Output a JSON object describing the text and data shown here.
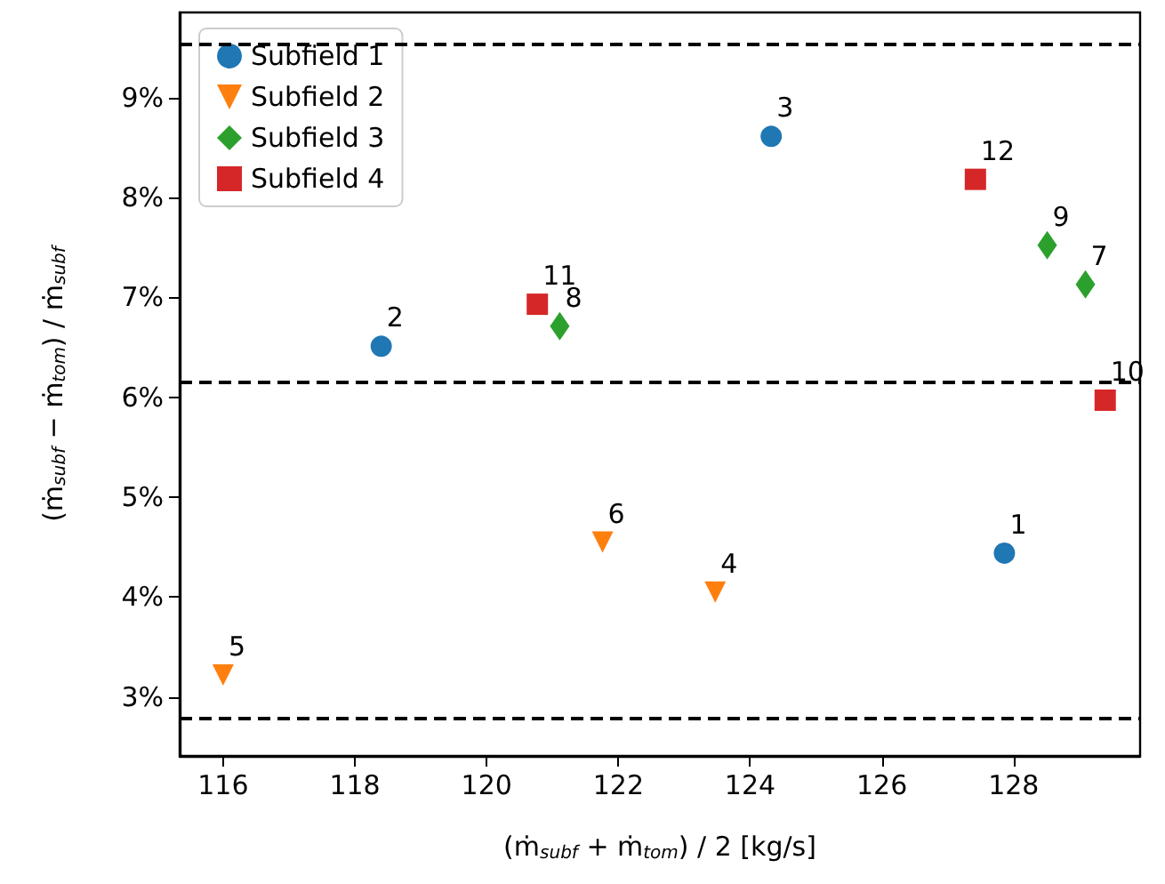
{
  "chart_data": {
    "type": "scatter",
    "xlabel": "(ṁ$_{subf}$ + ṁ$_{tom}$) / 2 [kg/s]",
    "ylabel": "(ṁ$_{subf}$ − ṁ$_{tom}$) / ṁ$_{subf}$",
    "xlim": [
      115.34,
      129.92
    ],
    "xticks": [
      116,
      118,
      120,
      122,
      124,
      126,
      128
    ],
    "ylim": [
      2.41,
      9.85
    ],
    "yticks": [
      {
        "value": 3,
        "label": "3%"
      },
      {
        "value": 4,
        "label": "4%"
      },
      {
        "value": 5,
        "label": "5%"
      },
      {
        "value": 6,
        "label": "6%"
      },
      {
        "value": 7,
        "label": "7%"
      },
      {
        "value": 8,
        "label": "8%"
      },
      {
        "value": 9,
        "label": "9%"
      }
    ],
    "series": [
      {
        "name": "Subfield 1",
        "color": "#1f77b4",
        "marker": "circle",
        "x": [
          127.86,
          118.4,
          124.32
        ],
        "values": [
          4.44,
          6.51,
          8.61
        ]
      },
      {
        "name": "Subfield 2",
        "color": "#ff7f0e",
        "marker": "triangle",
        "x": [
          123.47,
          116.0,
          121.76
        ],
        "values": [
          4.05,
          3.22,
          4.55
        ]
      },
      {
        "name": "Subfield 3",
        "color": "#2ca02c",
        "marker": "diamond",
        "x": [
          129.09,
          121.11,
          128.51
        ],
        "values": [
          7.13,
          6.71,
          7.52
        ]
      },
      {
        "name": "Subfield 4",
        "color": "#d62728",
        "marker": "square",
        "x": [
          129.39,
          120.77,
          127.42
        ],
        "values": [
          5.97,
          6.93,
          8.18
        ]
      }
    ],
    "annotations": [
      {
        "text": "1",
        "x": 127.86,
        "y": 4.44
      },
      {
        "text": "2",
        "x": 118.4,
        "y": 6.51
      },
      {
        "text": "3",
        "x": 124.32,
        "y": 8.61
      },
      {
        "text": "4",
        "x": 123.47,
        "y": 4.05
      },
      {
        "text": "5",
        "x": 116.0,
        "y": 3.22
      },
      {
        "text": "6",
        "x": 121.76,
        "y": 4.55
      },
      {
        "text": "7",
        "x": 129.09,
        "y": 7.13
      },
      {
        "text": "8",
        "x": 121.11,
        "y": 6.71
      },
      {
        "text": "9",
        "x": 128.51,
        "y": 7.52
      },
      {
        "text": "10",
        "x": 129.39,
        "y": 5.97
      },
      {
        "text": "11",
        "x": 120.77,
        "y": 6.93
      },
      {
        "text": "12",
        "x": 127.42,
        "y": 8.18
      }
    ],
    "ref_lines": [
      {
        "axis": "y",
        "value": 9.53,
        "color": "#000000",
        "line_style": "dashed"
      },
      {
        "axis": "y",
        "value": 6.15,
        "color": "#000000",
        "line_style": "dashed"
      },
      {
        "axis": "y",
        "value": 2.79,
        "color": "#000000",
        "line_style": "dashed"
      }
    ],
    "grid": false,
    "legend": "top left"
  }
}
